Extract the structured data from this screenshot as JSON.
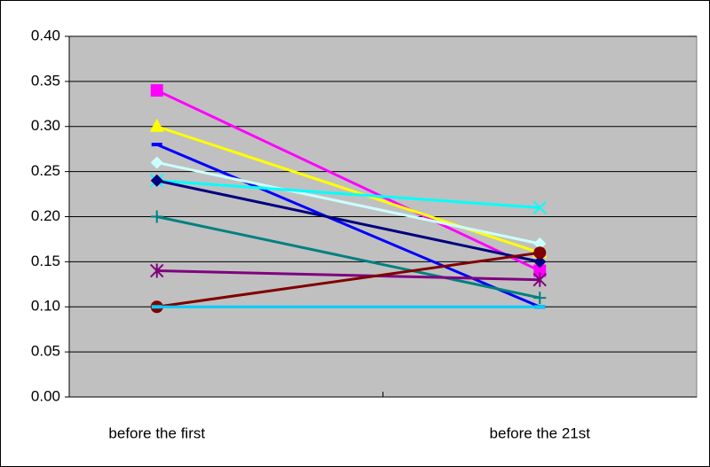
{
  "chart_data": {
    "type": "line",
    "categories": [
      "before the first",
      "before the 21st"
    ],
    "ylim": [
      0,
      0.4
    ],
    "yticks": [
      {
        "value": 0,
        "label": "0.00"
      },
      0.05,
      {
        "value": 0.1,
        "label": "0.10"
      },
      0.15,
      {
        "value": 0.2,
        "label": "0.20"
      },
      0.25,
      {
        "value": 0.3,
        "label": "0.30"
      },
      0.35,
      {
        "value": 0.4,
        "label": "0.40"
      }
    ],
    "grid": true,
    "series": [
      {
        "color": "#ff00ff",
        "marker": "square",
        "values": [
          0.34,
          0.14
        ]
      },
      {
        "color": "#ffff00",
        "marker": "triangle",
        "values": [
          0.3,
          0.16
        ]
      },
      {
        "color": "#0000ff",
        "marker": "dash",
        "values": [
          0.28,
          0.1
        ]
      },
      {
        "color": "#ccffff",
        "marker": "diamond",
        "values": [
          0.26,
          0.17
        ]
      },
      {
        "color": "#00ffff",
        "marker": "x",
        "values": [
          0.24,
          0.21
        ]
      },
      {
        "color": "#000080",
        "marker": "diamond",
        "values": [
          0.24,
          0.15
        ]
      },
      {
        "color": "#008080",
        "marker": "plus",
        "values": [
          0.2,
          0.11
        ]
      },
      {
        "color": "#800080",
        "marker": "star",
        "values": [
          0.14,
          0.13
        ]
      },
      {
        "color": "#800000",
        "marker": "circle",
        "values": [
          0.1,
          0.16
        ]
      },
      {
        "color": "#00ccff",
        "marker": "dash",
        "values": [
          0.1,
          0.1
        ]
      }
    ]
  }
}
